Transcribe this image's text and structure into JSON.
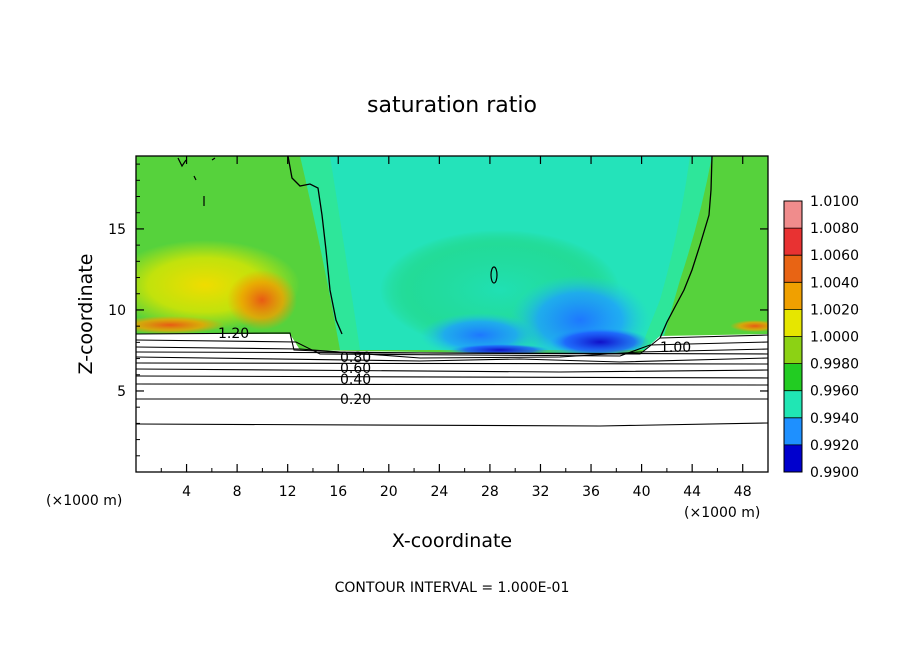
{
  "chart_data": {
    "type": "heatmap",
    "title": "saturation ratio",
    "xlabel": "X-coordinate",
    "ylabel": "Z-coordinate",
    "x_unit_label": "(×1000 m)",
    "y_unit_label": "(×1000 m)",
    "xlim": [
      0,
      50
    ],
    "ylim": [
      0,
      19.5
    ],
    "xticks": [
      "4",
      "8",
      "12",
      "16",
      "20",
      "24",
      "28",
      "32",
      "36",
      "40",
      "44",
      "48"
    ],
    "yticks": [
      "5",
      "10",
      "15"
    ],
    "colorbar": {
      "labels": [
        "1.0100",
        "1.0080",
        "1.0060",
        "1.0040",
        "1.0020",
        "1.0000",
        "0.9980",
        "0.9960",
        "0.9940",
        "0.9920",
        "0.9900"
      ],
      "colors": [
        "#f08c8c",
        "#e83232",
        "#e86414",
        "#f0a000",
        "#e6e600",
        "#8cd214",
        "#22cc22",
        "#20e6b4",
        "#1e90ff",
        "#0000cd",
        "#6a0dad"
      ]
    },
    "contour_labels": [
      "1.20",
      "1.00",
      "0.80",
      "0.60",
      "0.40",
      "0.20"
    ],
    "contour_interval_text": "CONTOUR INTERVAL = 1.000E-01"
  }
}
